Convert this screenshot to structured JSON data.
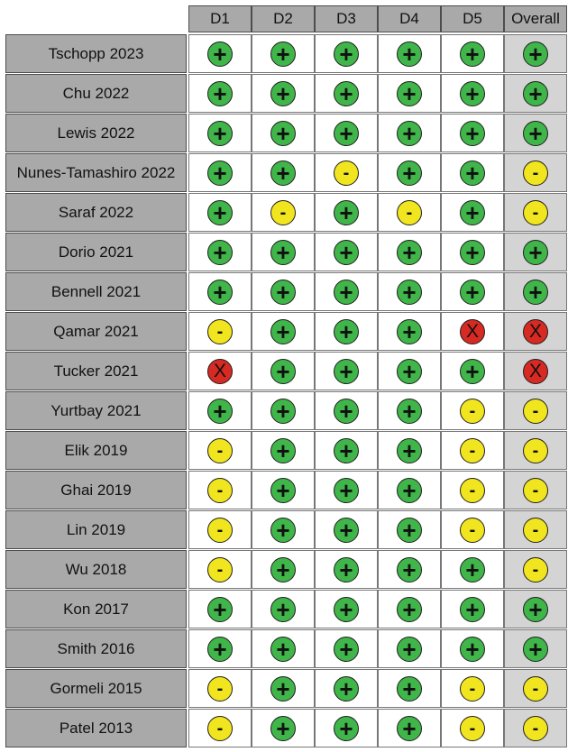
{
  "chart_data": {
    "type": "table",
    "columns": [
      "D1",
      "D2",
      "D3",
      "D4",
      "D5",
      "Overall"
    ],
    "judgements": {
      "low": {
        "symbol": "+",
        "color": "#3fb54a"
      },
      "some": {
        "symbol": "-",
        "color": "#f0e51e"
      },
      "high": {
        "symbol": "X",
        "color": "#d62a23"
      }
    },
    "rows": [
      {
        "study": "Tschopp 2023",
        "values": [
          "low",
          "low",
          "low",
          "low",
          "low",
          "low"
        ]
      },
      {
        "study": "Chu 2022",
        "values": [
          "low",
          "low",
          "low",
          "low",
          "low",
          "low"
        ]
      },
      {
        "study": "Lewis 2022",
        "values": [
          "low",
          "low",
          "low",
          "low",
          "low",
          "low"
        ]
      },
      {
        "study": "Nunes-Tamashiro 2022",
        "values": [
          "low",
          "low",
          "some",
          "low",
          "low",
          "some"
        ]
      },
      {
        "study": "Saraf 2022",
        "values": [
          "low",
          "some",
          "low",
          "some",
          "low",
          "some"
        ]
      },
      {
        "study": "Dorio 2021",
        "values": [
          "low",
          "low",
          "low",
          "low",
          "low",
          "low"
        ]
      },
      {
        "study": "Bennell 2021",
        "values": [
          "low",
          "low",
          "low",
          "low",
          "low",
          "low"
        ]
      },
      {
        "study": "Qamar 2021",
        "values": [
          "some",
          "low",
          "low",
          "low",
          "high",
          "high"
        ]
      },
      {
        "study": "Tucker 2021",
        "values": [
          "high",
          "low",
          "low",
          "low",
          "low",
          "high"
        ]
      },
      {
        "study": "Yurtbay 2021",
        "values": [
          "low",
          "low",
          "low",
          "low",
          "some",
          "some"
        ]
      },
      {
        "study": "Elik 2019",
        "values": [
          "some",
          "low",
          "low",
          "low",
          "some",
          "some"
        ]
      },
      {
        "study": "Ghai 2019",
        "values": [
          "some",
          "low",
          "low",
          "low",
          "some",
          "some"
        ]
      },
      {
        "study": "Lin 2019",
        "values": [
          "some",
          "low",
          "low",
          "low",
          "some",
          "some"
        ]
      },
      {
        "study": "Wu 2018",
        "values": [
          "some",
          "low",
          "low",
          "low",
          "low",
          "some"
        ]
      },
      {
        "study": "Kon 2017",
        "values": [
          "low",
          "low",
          "low",
          "low",
          "low",
          "low"
        ]
      },
      {
        "study": "Smith 2016",
        "values": [
          "low",
          "low",
          "low",
          "low",
          "low",
          "low"
        ]
      },
      {
        "study": "Gormeli 2015",
        "values": [
          "some",
          "low",
          "low",
          "low",
          "some",
          "some"
        ]
      },
      {
        "study": "Patel 2013",
        "values": [
          "some",
          "low",
          "low",
          "low",
          "some",
          "some"
        ]
      }
    ]
  }
}
